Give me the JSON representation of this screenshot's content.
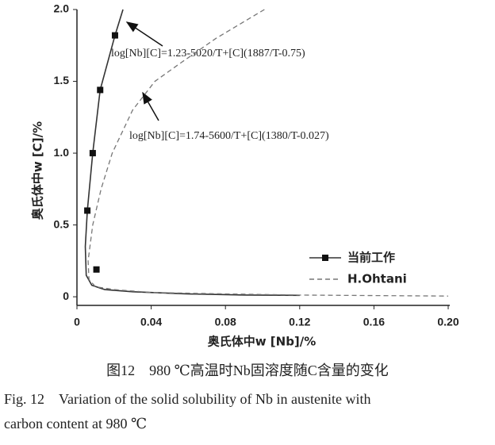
{
  "chart_data": {
    "type": "line",
    "xlabel": "奥氏体中w [Nb]/%",
    "ylabel": "奥氏体中w [C]/%",
    "xlim": [
      0,
      0.2
    ],
    "xticks": [
      0,
      0.04,
      0.08,
      0.12,
      0.16,
      {
        "value": 0.2,
        "label": "0.20"
      }
    ],
    "ylim": [
      -0.06,
      2.0
    ],
    "yticks": [
      0,
      0.5,
      {
        "value": 1,
        "label": "1.0"
      },
      1.5,
      {
        "value": 2,
        "label": "2.0"
      }
    ],
    "legend": "lower right",
    "series": [
      {
        "name": "当前工作",
        "color": "#333333",
        "style": "solid",
        "x": [
          0.0248,
          0.0205,
          0.0125,
          0.0085,
          0.0056,
          0.0045,
          0.005,
          0.008,
          0.015,
          0.03,
          0.06,
          0.09,
          0.12
        ],
        "values": [
          2.0,
          1.82,
          1.44,
          1.0,
          0.6,
          0.35,
          0.15,
          0.08,
          0.05,
          0.035,
          0.02,
          0.012,
          0.01
        ],
        "markers": {
          "x": [
            0.0056,
            0.0085,
            0.0125,
            0.0205,
            0.0105
          ],
          "values": [
            0.6,
            1.0,
            1.44,
            1.82,
            0.19
          ]
        }
      },
      {
        "name": "H.Ohtani",
        "color": "#777777",
        "style": "dashed",
        "x": [
          0.101,
          0.075,
          0.055,
          0.042,
          0.03,
          0.019,
          0.013,
          0.0085,
          0.006,
          0.0065,
          0.01,
          0.02,
          0.04,
          0.08,
          0.12,
          0.2
        ],
        "values": [
          2.0,
          1.8,
          1.62,
          1.5,
          1.3,
          1.0,
          0.75,
          0.5,
          0.25,
          0.12,
          0.07,
          0.05,
          0.03,
          0.02,
          0.012,
          0.005
        ]
      }
    ],
    "annotations": [
      "log[Nb][C]=1.23-5020/T+[C](1887/T-0.75)",
      "log[Nb][C]=1.74-5600/T+[C](1380/T-0.027)"
    ]
  },
  "caption": {
    "cn": "图12　980 ℃高温时Nb固溶度随C含量的变化",
    "en_line1": "Fig. 12　Variation of the solid solubility of Nb in austenite with",
    "en_line2": "carbon content at 980 ℃"
  }
}
